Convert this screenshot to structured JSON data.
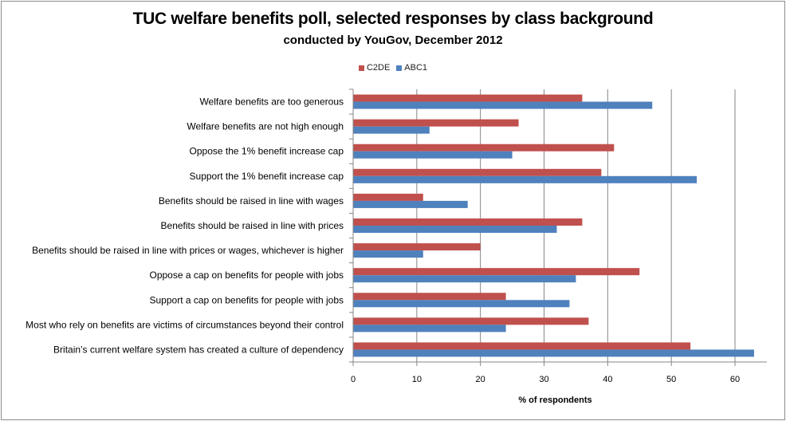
{
  "chart_data": {
    "type": "bar",
    "orientation": "horizontal",
    "title": "TUC welfare benefits poll, selected responses by class background",
    "subtitle": "conducted by YouGov, December 2012",
    "xlabel": "% of respondents",
    "ylabel": "",
    "xlim": [
      0,
      65
    ],
    "xticks": [
      0,
      10,
      20,
      30,
      40,
      50,
      60
    ],
    "grid": "vertical",
    "legend_position": "top",
    "categories": [
      "Welfare benefits are too generous",
      "Welfare benefits are not high enough",
      "Oppose the 1% benefit increase cap",
      "Support the 1% benefit increase cap",
      "Benefits should  be raised in line with wages",
      "Benefits should  be raised in line with prices",
      "Benefits should  be raised in line with prices or wages,  whichever is higher",
      "Oppose a cap on benefits for people with  jobs",
      "Support a cap on benefits for people with jobs",
      "Most who rely on benefits are victims of circumstances beyond their control",
      "Britain’s current welfare system  has created a culture of dependency"
    ],
    "series": [
      {
        "name": "C2DE",
        "color": "#c0504d",
        "values": [
          36,
          26,
          41,
          39,
          11,
          36,
          20,
          45,
          24,
          37,
          53
        ]
      },
      {
        "name": "ABC1",
        "color": "#4f81bd",
        "values": [
          47,
          12,
          25,
          54,
          18,
          32,
          11,
          35,
          34,
          24,
          63
        ]
      }
    ]
  }
}
